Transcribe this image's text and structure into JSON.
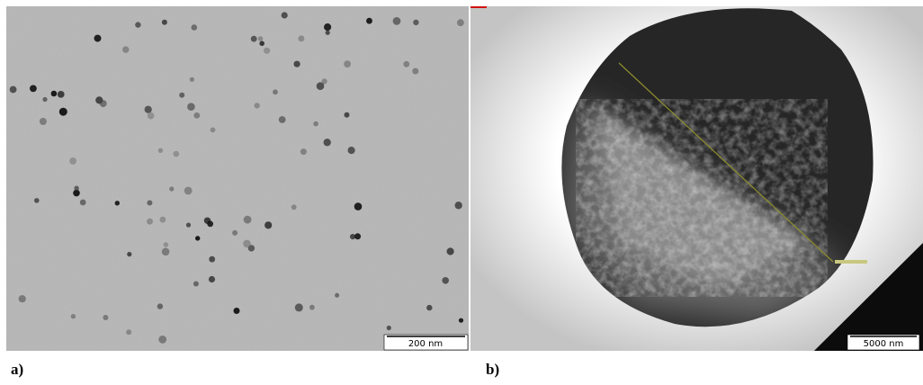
{
  "panels": [
    {
      "label": "a)",
      "scale_bar": "200 nm"
    },
    {
      "label": "b)",
      "scale_bar": "5000 nm"
    }
  ]
}
